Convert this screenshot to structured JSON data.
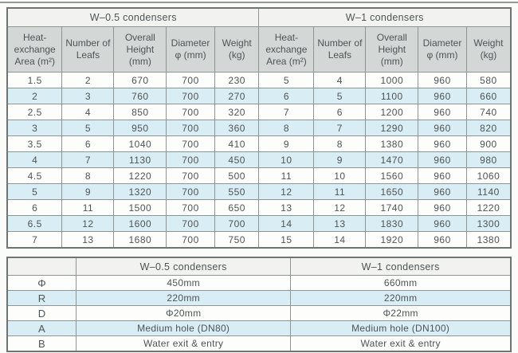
{
  "colors": {
    "stripe_blue": "#d8edf4",
    "header_gray": "#d3d7d6",
    "band_light": "#f2f3f1",
    "cell_border": "#8f9595",
    "outer_border": "#6e7474",
    "text": "#4e5456"
  },
  "top_table": {
    "groups": [
      "W–0.5 condensers",
      "W–1 condensers"
    ],
    "columns": [
      "Heat-exchange Area (m²)",
      "Number of Leafs",
      "Overall Height (mm)",
      "Diameter φ (mm)",
      "Weight (kg)"
    ],
    "rows": [
      [
        "1.5",
        "2",
        "670",
        "700",
        "230",
        "5",
        "4",
        "1000",
        "960",
        "580"
      ],
      [
        "2",
        "3",
        "760",
        "700",
        "270",
        "6",
        "5",
        "1100",
        "960",
        "660"
      ],
      [
        "2.5",
        "4",
        "850",
        "700",
        "320",
        "7",
        "6",
        "1200",
        "960",
        "740"
      ],
      [
        "3",
        "5",
        "950",
        "700",
        "360",
        "8",
        "7",
        "1290",
        "960",
        "820"
      ],
      [
        "3.5",
        "6",
        "1040",
        "700",
        "410",
        "9",
        "8",
        "1380",
        "960",
        "900"
      ],
      [
        "4",
        "7",
        "1130",
        "700",
        "450",
        "10",
        "9",
        "1470",
        "960",
        "980"
      ],
      [
        "4.5",
        "8",
        "1220",
        "700",
        "500",
        "11",
        "10",
        "1560",
        "960",
        "1060"
      ],
      [
        "5",
        "9",
        "1320",
        "700",
        "550",
        "12",
        "11",
        "1650",
        "960",
        "1140"
      ],
      [
        "6",
        "11",
        "1500",
        "700",
        "650",
        "13",
        "12",
        "1740",
        "960",
        "1220"
      ],
      [
        "6.5",
        "12",
        "1600",
        "700",
        "700",
        "14",
        "13",
        "1830",
        "960",
        "1300"
      ],
      [
        "7",
        "13",
        "1680",
        "700",
        "750",
        "15",
        "14",
        "1920",
        "960",
        "1380"
      ]
    ]
  },
  "bottom_table": {
    "header": [
      "",
      "W–0.5 condensers",
      "W–1 condensers"
    ],
    "rows": [
      [
        "Φ",
        "450mm",
        "660mm"
      ],
      [
        "R",
        "220mm",
        "220mm"
      ],
      [
        "D",
        "Φ20mm",
        "Φ22mm"
      ],
      [
        "A",
        "Medium hole (DN80)",
        "Medium hole (DN100)"
      ],
      [
        "B",
        "Water exit & entry",
        "Water exit & entry"
      ]
    ]
  }
}
